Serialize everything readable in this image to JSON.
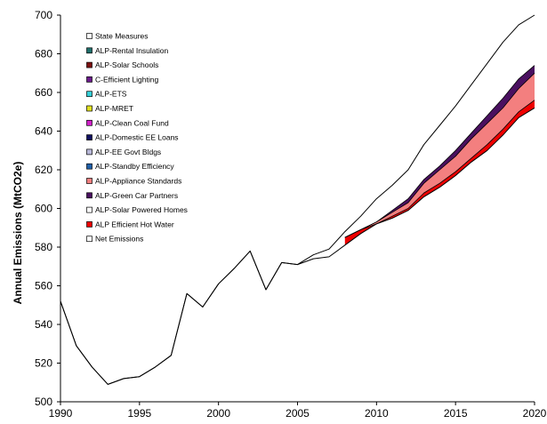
{
  "chart_data": {
    "type": "area",
    "xlabel": "",
    "ylabel": "Annual Emissions (MtCO2e)",
    "xlim": [
      1990,
      2020
    ],
    "ylim": [
      500,
      700
    ],
    "xticks": [
      1990,
      1995,
      2000,
      2005,
      2010,
      2015,
      2020
    ],
    "yticks": [
      500,
      520,
      540,
      560,
      580,
      600,
      620,
      640,
      660,
      680,
      700
    ],
    "legend_position": "top-left",
    "legend": [
      {
        "name": "State Measures",
        "color": "#ffffff"
      },
      {
        "name": "ALP-Rental Insulation",
        "color": "#1f6f6b"
      },
      {
        "name": "ALP-Solar Schools",
        "color": "#7b1010"
      },
      {
        "name": "C-Efficient Lighting",
        "color": "#6a1a8a"
      },
      {
        "name": "ALP-ETS",
        "color": "#35d0d8"
      },
      {
        "name": "ALP-MRET",
        "color": "#e0e020"
      },
      {
        "name": "ALP-Clean Coal Fund",
        "color": "#d020c8"
      },
      {
        "name": "ALP-Domestic EE Loans",
        "color": "#101060"
      },
      {
        "name": "ALP-EE Govt Bldgs",
        "color": "#b8b8d8"
      },
      {
        "name": "ALP-Standby Efficiency",
        "color": "#1f5fa8"
      },
      {
        "name": "ALP-Appliance Standards",
        "color": "#f37f7f"
      },
      {
        "name": "ALP-Green Car Partners",
        "color": "#4a1060"
      },
      {
        "name": "ALP-Solar Powered Homes",
        "color": "#ffffff"
      },
      {
        "name": "ALP Efficient Hot Water",
        "color": "#ee0000"
      },
      {
        "name": "Net Emissions",
        "color": "#ffffff"
      }
    ],
    "x": [
      1990,
      1991,
      1992,
      1993,
      1994,
      1995,
      1996,
      1997,
      1998,
      1999,
      2000,
      2001,
      2002,
      2003,
      2004,
      2005,
      2006,
      2007,
      2008,
      2009,
      2010,
      2011,
      2012,
      2013,
      2014,
      2015,
      2016,
      2017,
      2018,
      2019,
      2020
    ],
    "series": [
      {
        "name": "State Measures",
        "values": [
          552,
          529,
          518,
          509,
          512,
          513,
          518,
          524,
          556,
          549,
          561,
          569,
          578,
          558,
          572,
          571,
          576,
          579,
          588,
          596,
          605,
          612,
          620,
          633,
          643,
          653,
          664,
          675,
          686,
          695,
          700
        ]
      },
      {
        "name": "ALP-Green Car Partners",
        "values": [
          null,
          null,
          null,
          null,
          null,
          null,
          null,
          null,
          null,
          null,
          null,
          null,
          null,
          null,
          null,
          null,
          null,
          null,
          585,
          589,
          593,
          599,
          605,
          615,
          622,
          630,
          639,
          648,
          657,
          667,
          674
        ]
      },
      {
        "name": "ALP-Appliance Standards",
        "values": [
          null,
          null,
          null,
          null,
          null,
          null,
          null,
          null,
          null,
          null,
          null,
          null,
          null,
          null,
          null,
          null,
          null,
          null,
          585,
          589,
          593,
          598,
          603,
          613,
          620,
          627,
          636,
          644,
          652,
          662,
          670
        ]
      },
      {
        "name": "ALP Efficient Hot Water",
        "values": [
          null,
          null,
          null,
          null,
          null,
          null,
          null,
          null,
          null,
          null,
          null,
          null,
          null,
          null,
          null,
          null,
          null,
          null,
          585,
          589,
          592,
          596,
          600,
          608,
          613,
          619,
          626,
          633,
          641,
          650,
          656
        ]
      },
      {
        "name": "Net Emissions",
        "values": [
          552,
          529,
          518,
          509,
          512,
          513,
          518,
          524,
          556,
          549,
          561,
          569,
          578,
          558,
          572,
          571,
          574,
          575,
          581,
          587,
          592,
          595,
          599,
          606,
          611,
          617,
          624,
          630,
          638,
          647,
          652
        ]
      }
    ]
  }
}
